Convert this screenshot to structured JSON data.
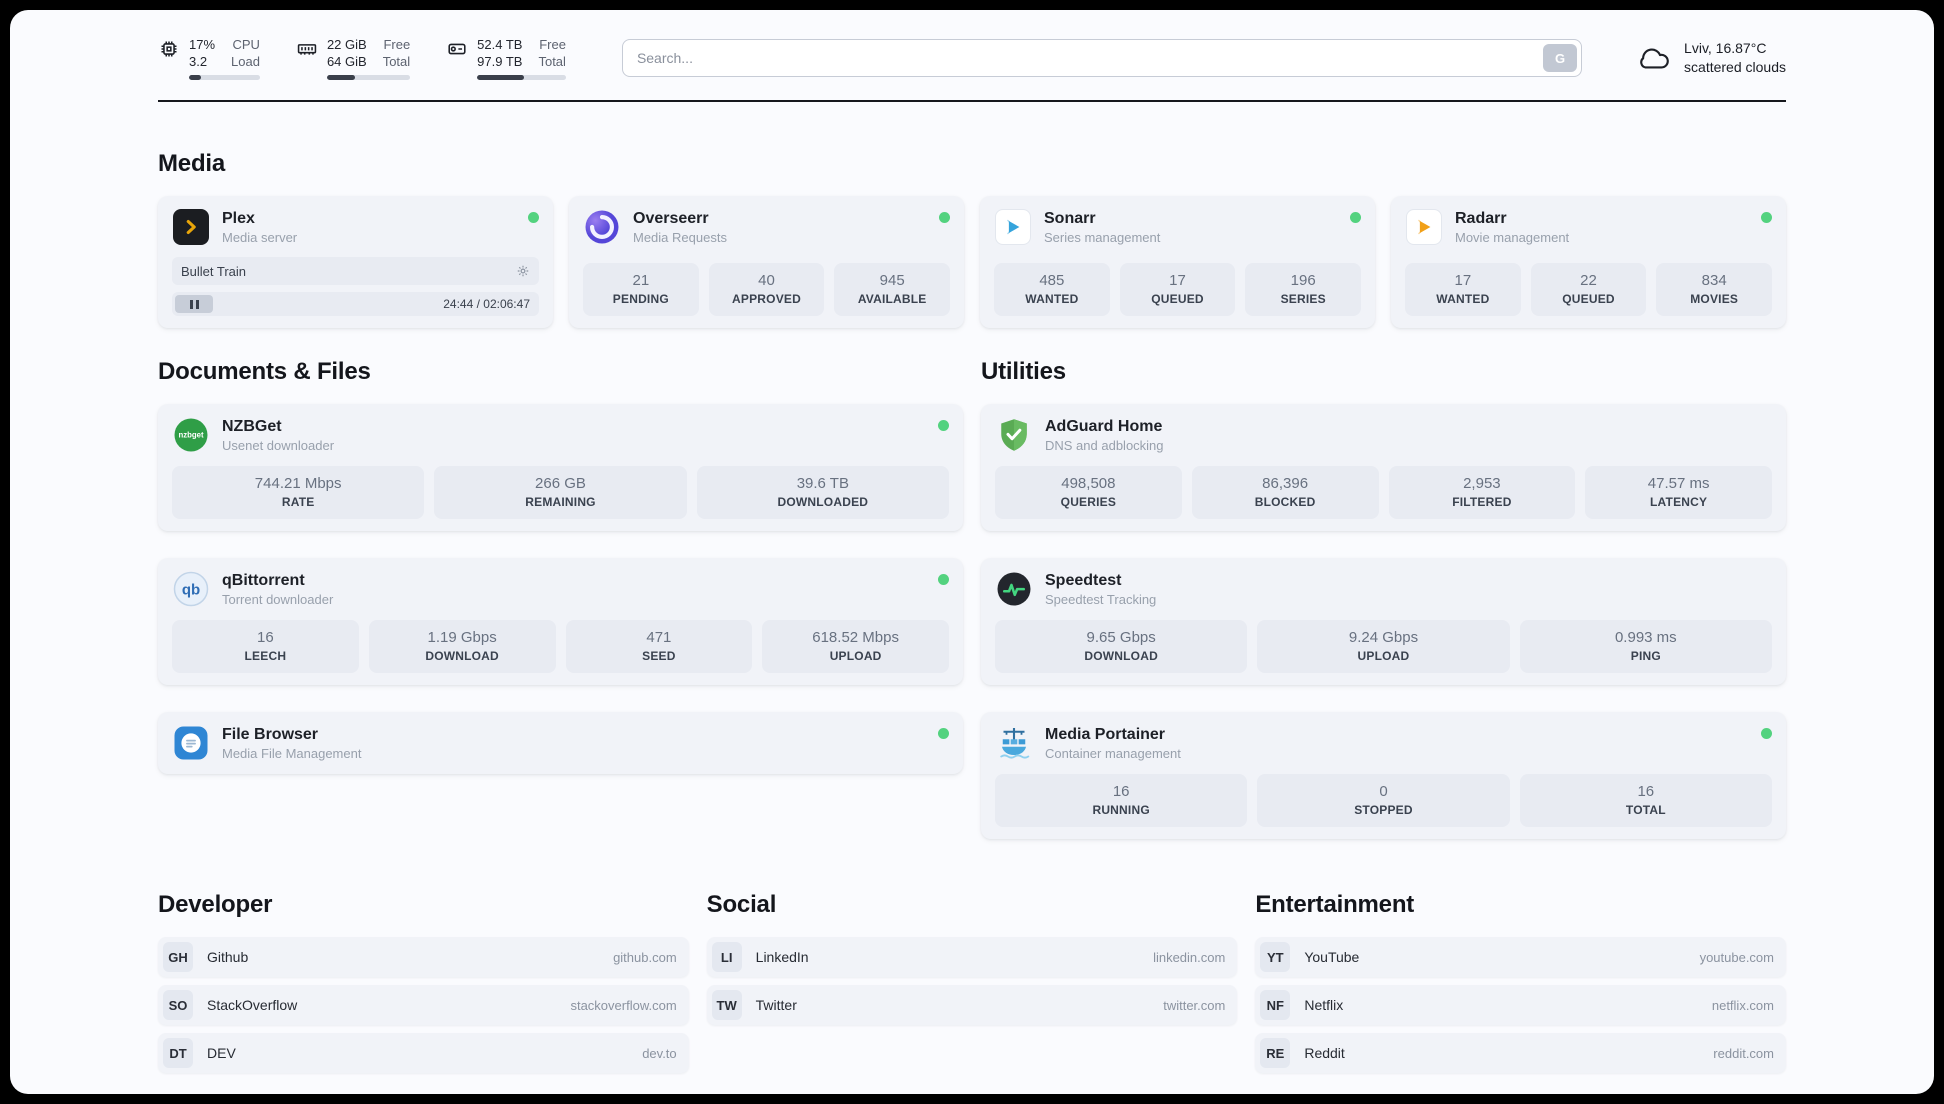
{
  "topbar": {
    "cpu": {
      "value1": "17%",
      "value2": "3.2",
      "label1": "CPU",
      "label2": "Load",
      "bar_percent": 17
    },
    "ram": {
      "value1": "22 GiB",
      "value2": "64 GiB",
      "label1": "Free",
      "label2": "Total",
      "bar_percent": 34
    },
    "disk": {
      "value1": "52.4 TB",
      "value2": "97.9 TB",
      "label1": "Free",
      "label2": "Total",
      "bar_percent": 53
    },
    "search": {
      "placeholder": "Search...",
      "button_label": "G"
    },
    "weather": {
      "location": "Lviv, 16.87°C",
      "condition": "scattered clouds"
    }
  },
  "sections": {
    "media": "Media",
    "documents": "Documents & Files",
    "utilities": "Utilities",
    "developer": "Developer",
    "social": "Social",
    "entertainment": "Entertainment"
  },
  "apps": {
    "plex": {
      "name": "Plex",
      "subtitle": "Media server",
      "now_playing": "Bullet Train",
      "time": "24:44 / 02:06:47"
    },
    "overseerr": {
      "name": "Overseerr",
      "subtitle": "Media Requests",
      "stats": [
        {
          "value": "21",
          "label": "PENDING"
        },
        {
          "value": "40",
          "label": "APPROVED"
        },
        {
          "value": "945",
          "label": "AVAILABLE"
        }
      ]
    },
    "sonarr": {
      "name": "Sonarr",
      "subtitle": "Series management",
      "stats": [
        {
          "value": "485",
          "label": "WANTED"
        },
        {
          "value": "17",
          "label": "QUEUED"
        },
        {
          "value": "196",
          "label": "SERIES"
        }
      ]
    },
    "radarr": {
      "name": "Radarr",
      "subtitle": "Movie management",
      "stats": [
        {
          "value": "17",
          "label": "WANTED"
        },
        {
          "value": "22",
          "label": "QUEUED"
        },
        {
          "value": "834",
          "label": "MOVIES"
        }
      ]
    },
    "nzbget": {
      "name": "NZBGet",
      "subtitle": "Usenet downloader",
      "stats": [
        {
          "value": "744.21 Mbps",
          "label": "RATE"
        },
        {
          "value": "266 GB",
          "label": "REMAINING"
        },
        {
          "value": "39.6 TB",
          "label": "DOWNLOADED"
        }
      ]
    },
    "qbittorrent": {
      "name": "qBittorrent",
      "subtitle": "Torrent downloader",
      "stats": [
        {
          "value": "16",
          "label": "LEECH"
        },
        {
          "value": "1.19 Gbps",
          "label": "DOWNLOAD"
        },
        {
          "value": "471",
          "label": "SEED"
        },
        {
          "value": "618.52 Mbps",
          "label": "UPLOAD"
        }
      ]
    },
    "filebrowser": {
      "name": "File Browser",
      "subtitle": "Media File Management"
    },
    "adguard": {
      "name": "AdGuard Home",
      "subtitle": "DNS and adblocking",
      "stats": [
        {
          "value": "498,508",
          "label": "QUERIES"
        },
        {
          "value": "86,396",
          "label": "BLOCKED"
        },
        {
          "value": "2,953",
          "label": "FILTERED"
        },
        {
          "value": "47.57 ms",
          "label": "LATENCY"
        }
      ]
    },
    "speedtest": {
      "name": "Speedtest",
      "subtitle": "Speedtest Tracking",
      "stats": [
        {
          "value": "9.65 Gbps",
          "label": "DOWNLOAD"
        },
        {
          "value": "9.24 Gbps",
          "label": "UPLOAD"
        },
        {
          "value": "0.993 ms",
          "label": "PING"
        }
      ]
    },
    "portainer": {
      "name": "Media Portainer",
      "subtitle": "Container management",
      "stats": [
        {
          "value": "16",
          "label": "RUNNING"
        },
        {
          "value": "0",
          "label": "STOPPED"
        },
        {
          "value": "16",
          "label": "TOTAL"
        }
      ]
    }
  },
  "bookmarks": {
    "developer": [
      {
        "badge": "GH",
        "name": "Github",
        "url": "github.com"
      },
      {
        "badge": "SO",
        "name": "StackOverflow",
        "url": "stackoverflow.com"
      },
      {
        "badge": "DT",
        "name": "DEV",
        "url": "dev.to"
      }
    ],
    "social": [
      {
        "badge": "LI",
        "name": "LinkedIn",
        "url": "linkedin.com"
      },
      {
        "badge": "TW",
        "name": "Twitter",
        "url": "twitter.com"
      }
    ],
    "entertainment": [
      {
        "badge": "YT",
        "name": "YouTube",
        "url": "youtube.com"
      },
      {
        "badge": "NF",
        "name": "Netflix",
        "url": "netflix.com"
      },
      {
        "badge": "RE",
        "name": "Reddit",
        "url": "reddit.com"
      }
    ]
  },
  "colors": {
    "status_online": "#53d27f",
    "bar_fill": "#3a3f4a",
    "plex_yellow": "#e8a50a",
    "sonarr_blue": "#35a4dc",
    "radarr_orange": "#f1a018",
    "adguard_green": "#5aab54",
    "speedtest_green": "#43d680",
    "portainer_blue": "#3d9bd6"
  }
}
